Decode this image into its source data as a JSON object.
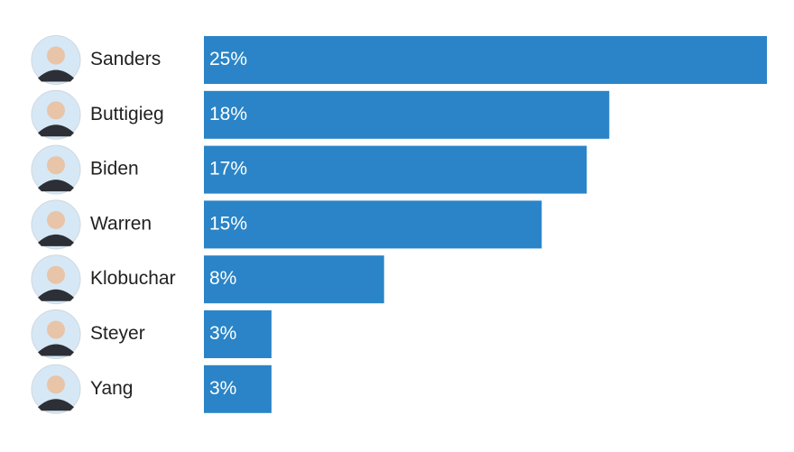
{
  "chart_data": {
    "type": "bar",
    "orientation": "horizontal",
    "categories": [
      "Sanders",
      "Buttigieg",
      "Biden",
      "Warren",
      "Klobuchar",
      "Steyer",
      "Yang"
    ],
    "values": [
      25,
      18,
      17,
      15,
      8,
      3,
      3
    ],
    "value_labels": [
      "25%",
      "18%",
      "17%",
      "15%",
      "8%",
      "3%",
      "3%"
    ],
    "color": "#2a84c7",
    "xlim": [
      0,
      25
    ]
  }
}
